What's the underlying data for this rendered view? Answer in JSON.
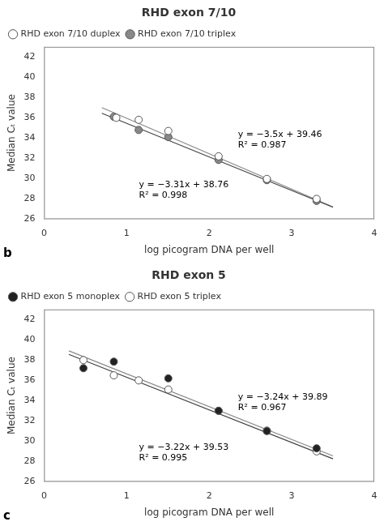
{
  "chart_data": [
    {
      "type": "scatter",
      "title": "RHD exon 7/10",
      "xlabel": "log picogram DNA per well",
      "ylabel": "Median Cₜ value",
      "xlim": [
        0,
        4
      ],
      "ylim": [
        26,
        43
      ],
      "xticks": [
        0,
        1,
        2,
        3,
        4
      ],
      "yticks": [
        26,
        28,
        30,
        32,
        34,
        36,
        38,
        40,
        42
      ],
      "grid": false,
      "legend": "upper left",
      "series": [
        {
          "name": "RHD exon 7/10 duplex",
          "color": "white",
          "marker": "circle",
          "x": [
            0.875,
            1.146,
            1.505,
            2.114,
            2.699,
            3.301
          ],
          "values": [
            36.0,
            35.8,
            34.7,
            32.2,
            29.97,
            28.0
          ]
        },
        {
          "name": "RHD exon 7/10 triplex",
          "color": "#888888",
          "marker": "circle",
          "x": [
            0.845,
            1.146,
            1.505,
            2.114,
            2.699,
            3.301
          ],
          "values": [
            36.1,
            34.8,
            34.1,
            31.85,
            29.85,
            27.8
          ]
        },
        {
          "type": "line",
          "color": "#444444",
          "x": [
            0.7,
            3.5
          ],
          "values": [
            36.443,
            27.175
          ]
        },
        {
          "type": "line",
          "color": "#888888",
          "x": [
            0.7,
            3.5
          ],
          "values": [
            37.01,
            27.21
          ]
        }
      ],
      "annotations": [
        {
          "text": "y = −3.31x + 38.76\nR² = 0.998",
          "x": 1.15,
          "y": 29.8
        },
        {
          "text": "y = −3.5x + 39.46\nR² = 0.987",
          "x": 2.35,
          "y": 34.8
        },
        {
          "text": "b"
        }
      ]
    },
    {
      "type": "scatter",
      "title": "RHD exon 5",
      "xlabel": "log picogram DNA per well",
      "ylabel": "Median Cₜ value",
      "xlim": [
        0,
        4
      ],
      "ylim": [
        26,
        43
      ],
      "xticks": [
        0,
        1,
        2,
        3,
        4
      ],
      "yticks": [
        26,
        28,
        30,
        32,
        34,
        36,
        38,
        40,
        42
      ],
      "grid": false,
      "legend": "upper left",
      "series": [
        {
          "name": "RHD exon 5 monoplex",
          "color": "#222222",
          "marker": "circle",
          "x": [
            0.477,
            0.845,
            1.505,
            2.114,
            2.699,
            3.301
          ],
          "values": [
            37.2,
            37.85,
            36.2,
            33.0,
            31.0,
            29.3
          ]
        },
        {
          "name": "RHD exon 5 triplex",
          "color": "white",
          "marker": "circle",
          "x": [
            0.477,
            0.845,
            1.146,
            1.505,
            2.114,
            2.699,
            3.301
          ],
          "values": [
            38.0,
            36.5,
            36.0,
            35.1,
            33.0,
            31.05,
            29.0
          ]
        },
        {
          "type": "line",
          "color": "#444444",
          "x": [
            0.3,
            3.5
          ],
          "values": [
            38.564,
            28.26
          ]
        },
        {
          "type": "line",
          "color": "#888888",
          "x": [
            0.3,
            3.5
          ],
          "values": [
            38.918,
            28.55
          ]
        }
      ],
      "annotations": [
        {
          "text": "y = −3.22x + 39.53\nR² = 0.995",
          "x": 1.15,
          "y": 29.8
        },
        {
          "text": "y = −3.24x + 39.89\nR² = 0.967",
          "x": 2.35,
          "y": 34.8
        },
        {
          "text": "c"
        }
      ]
    }
  ]
}
